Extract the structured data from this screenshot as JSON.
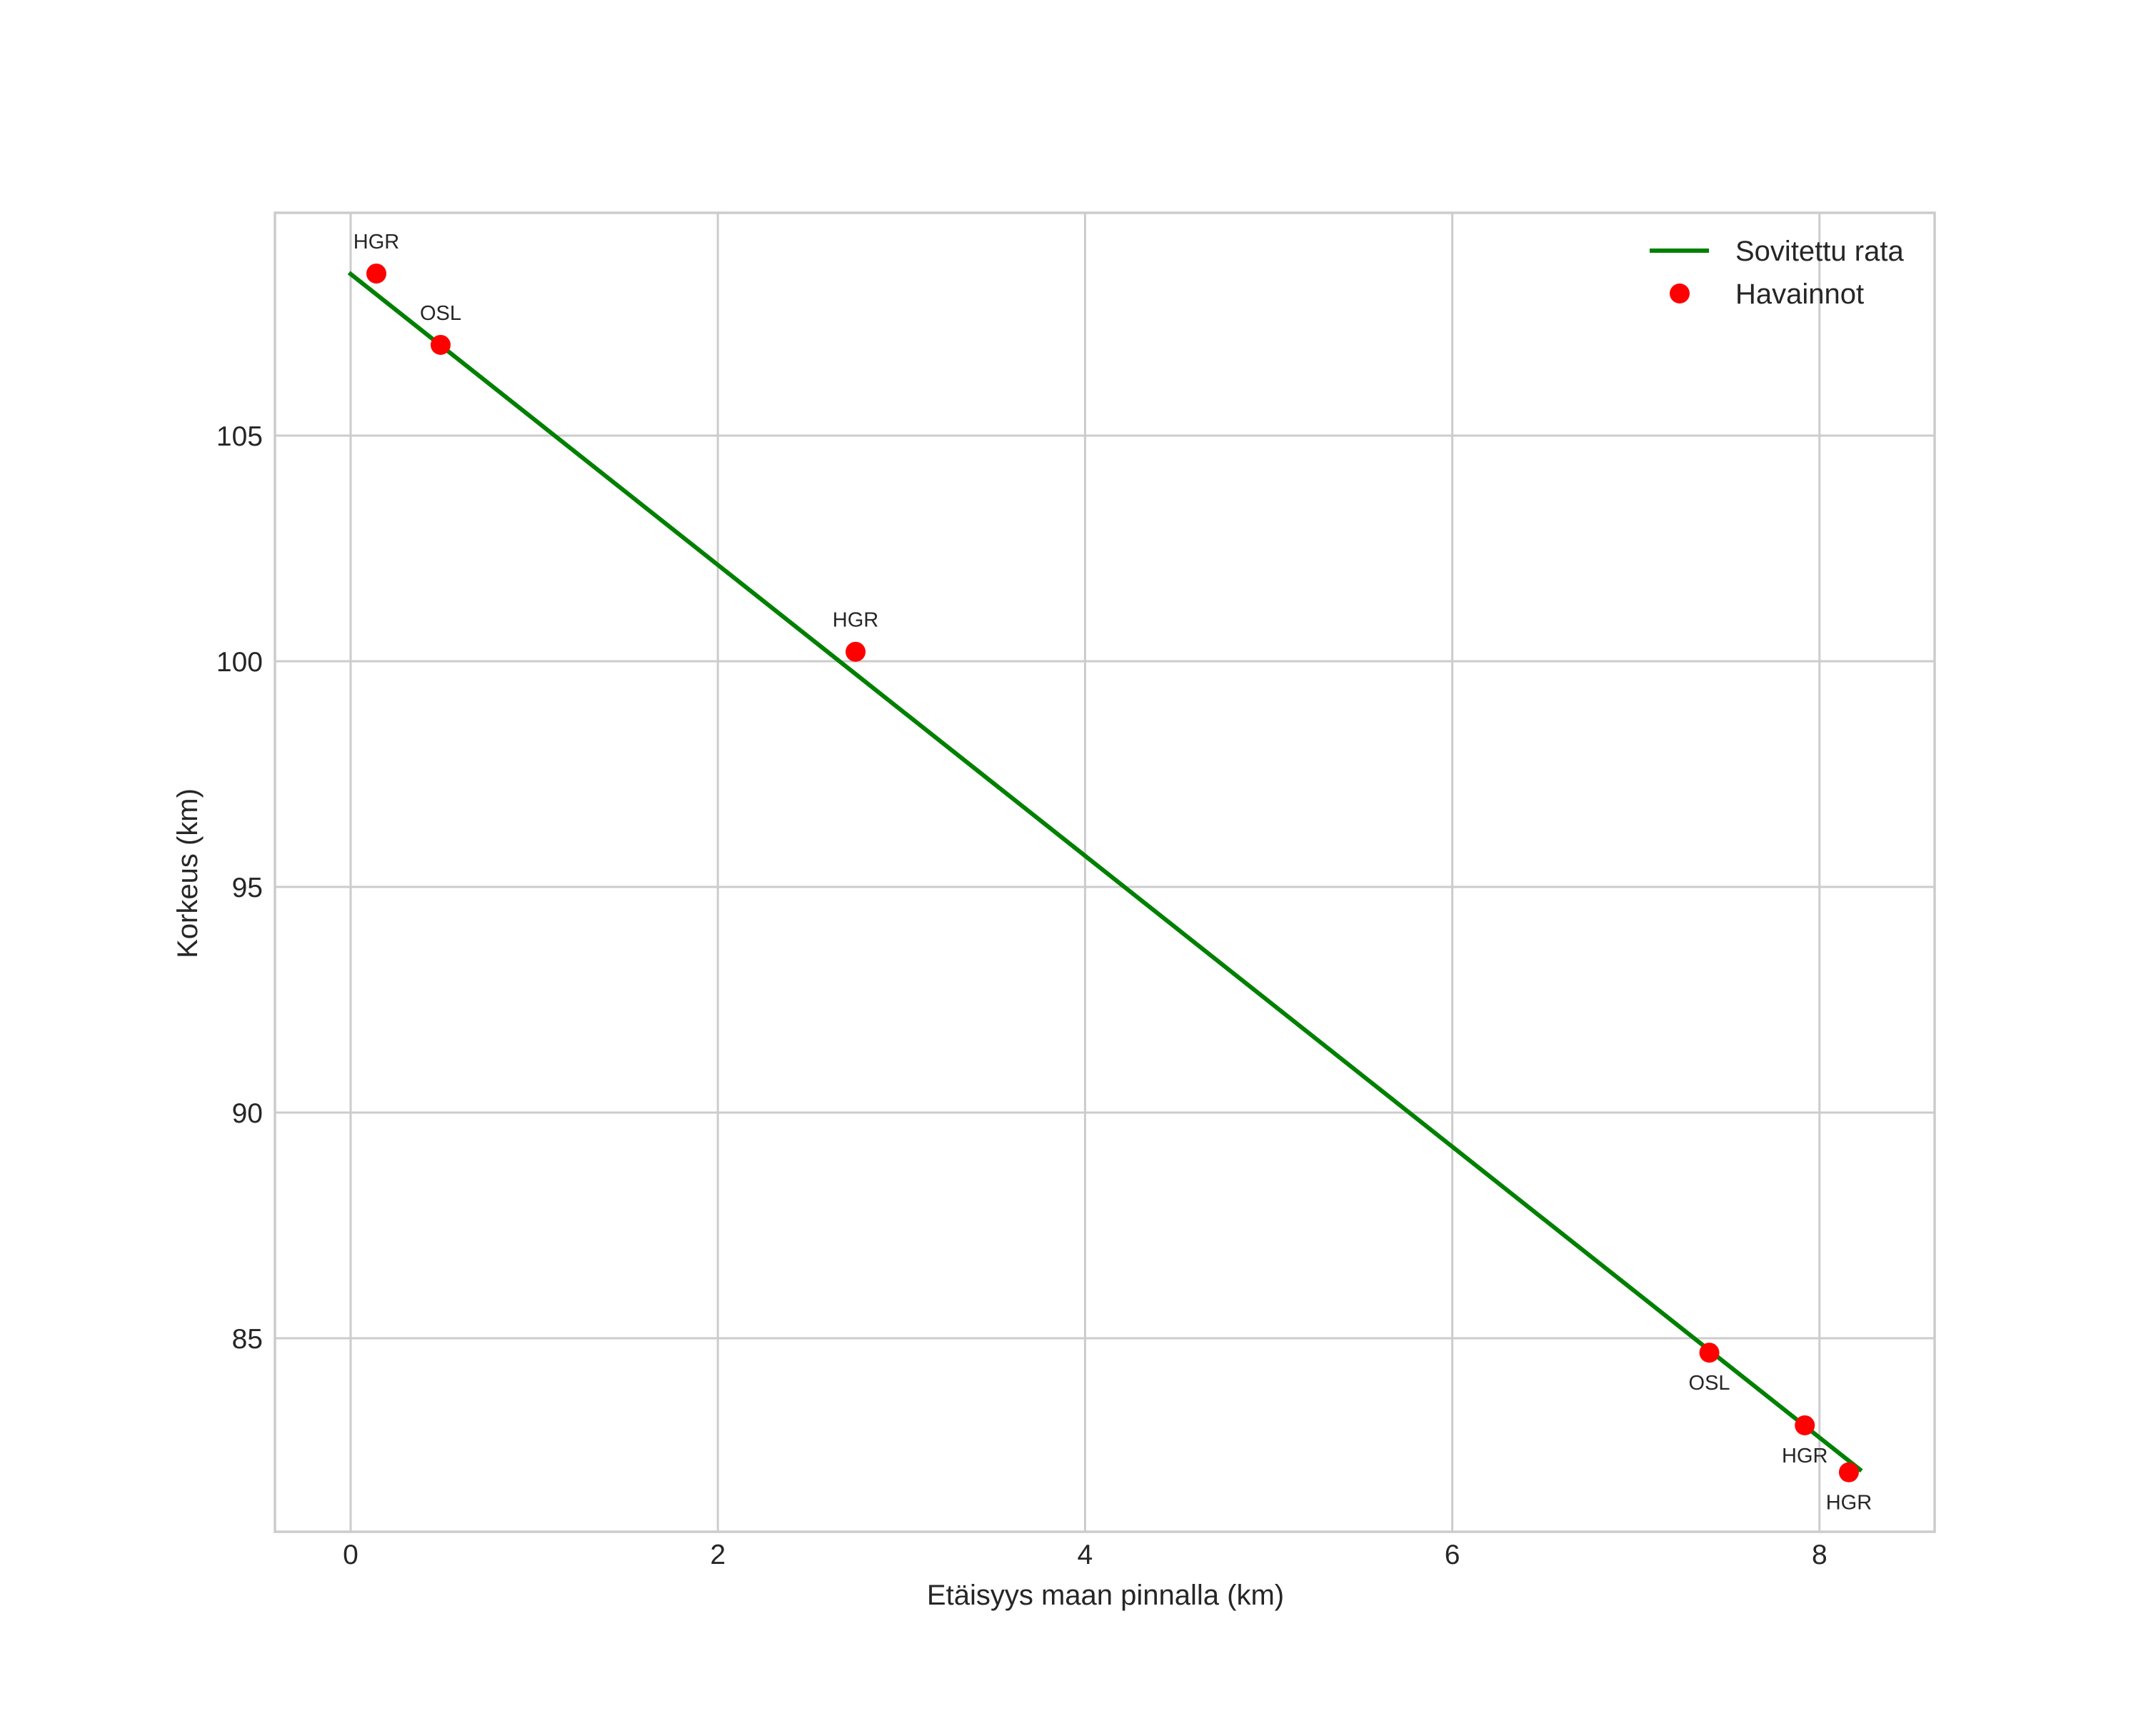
{
  "chart_data": {
    "type": "line",
    "title": "",
    "xlabel": "Etäisyys maan pinnalla (km)",
    "ylabel": "Korkeus (km)",
    "xlim": [
      -0.42,
      8.63
    ],
    "ylim": [
      80.7,
      109.9
    ],
    "grid": true,
    "legend_position": "upper right",
    "xticks": [
      0,
      2,
      4,
      6,
      8
    ],
    "xtick_labels": [
      "0",
      "2",
      "4",
      "6",
      "8"
    ],
    "yticks": [
      85,
      90,
      95,
      100,
      105
    ],
    "ytick_labels": [
      "85",
      "90",
      "95",
      "100",
      "105"
    ],
    "series": [
      {
        "name": "Sovitettu rata",
        "type": "line",
        "color": "#008000",
        "x": [
          0.0,
          8.22
        ],
        "y": [
          108.58,
          82.09
        ]
      },
      {
        "name": "Havainnot",
        "type": "scatter",
        "color": "#ff0000",
        "x": [
          0.14,
          0.49,
          2.75,
          7.4,
          7.92,
          8.16
        ],
        "y": [
          108.59,
          107.01,
          100.21,
          84.68,
          83.07,
          82.03
        ],
        "labels": [
          "HGR",
          "OSL",
          "HGR",
          "OSL",
          "HGR",
          "HGR"
        ],
        "label_positions": [
          "above",
          "above",
          "above",
          "below",
          "below",
          "below"
        ]
      }
    ]
  },
  "legend": {
    "items": [
      {
        "label": "Sovitettu rata",
        "symbol": "line",
        "color": "#008000"
      },
      {
        "label": "Havainnot",
        "symbol": "dot",
        "color": "#ff0000"
      }
    ]
  },
  "colors": {
    "grid": "#cccccc",
    "text": "#262626",
    "line": "#008000",
    "marker": "#ff0000"
  }
}
